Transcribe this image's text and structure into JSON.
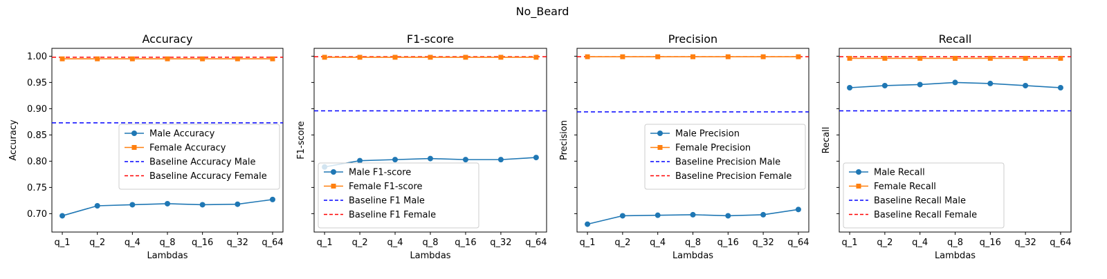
{
  "figure_title": "No_Beard",
  "colors": {
    "male": "#1f77b4",
    "female": "#ff7f0e",
    "baseline_male": "#0000ff",
    "baseline_female": "#ff0000"
  },
  "chart_data": [
    {
      "type": "line",
      "title": "Accuracy",
      "xlabel": "Lambdas",
      "ylabel": "Accuracy",
      "categories": [
        "q_1",
        "q_2",
        "q_4",
        "q_8",
        "q_16",
        "q_32",
        "q_64"
      ],
      "ylim": [
        0.665,
        1.015
      ],
      "yticks": [
        "0.70",
        "0.75",
        "0.80",
        "0.85",
        "0.90",
        "0.95",
        "1.00"
      ],
      "show_ytick_labels": true,
      "series": [
        {
          "name": "Male Accuracy",
          "marker": "circle",
          "values": [
            0.696,
            0.715,
            0.717,
            0.719,
            0.717,
            0.718,
            0.727
          ]
        },
        {
          "name": "Female Accuracy",
          "marker": "square",
          "values": [
            0.995,
            0.995,
            0.995,
            0.995,
            0.995,
            0.995,
            0.995
          ]
        }
      ],
      "baselines": [
        {
          "name": "Baseline Accuracy Male",
          "value": 0.873
        },
        {
          "name": "Baseline Accuracy Female",
          "value": 0.998
        }
      ],
      "legend_loc": "center-right"
    },
    {
      "type": "line",
      "title": "F1-score",
      "xlabel": "Lambdas",
      "ylabel": "F1-score",
      "categories": [
        "q_1",
        "q_2",
        "q_4",
        "q_8",
        "q_16",
        "q_32",
        "q_64"
      ],
      "ylim": [
        0.665,
        1.015
      ],
      "yticks": [
        "0.70",
        "0.75",
        "0.80",
        "0.85",
        "0.90",
        "0.95",
        "1.00"
      ],
      "show_ytick_labels": false,
      "series": [
        {
          "name": "Male F1-score",
          "marker": "circle",
          "values": [
            0.789,
            0.801,
            0.803,
            0.805,
            0.803,
            0.803,
            0.807
          ]
        },
        {
          "name": "Female F1-score",
          "marker": "square",
          "values": [
            0.998,
            0.998,
            0.998,
            0.998,
            0.998,
            0.998,
            0.998
          ]
        }
      ],
      "baselines": [
        {
          "name": "Baseline F1 Male",
          "value": 0.896
        },
        {
          "name": "Baseline F1 Female",
          "value": 0.999
        }
      ],
      "legend_loc": "lower-left"
    },
    {
      "type": "line",
      "title": "Precision",
      "xlabel": "Lambdas",
      "ylabel": "Precision",
      "categories": [
        "q_1",
        "q_2",
        "q_4",
        "q_8",
        "q_16",
        "q_32",
        "q_64"
      ],
      "ylim": [
        0.665,
        1.015
      ],
      "yticks": [
        "0.70",
        "0.75",
        "0.80",
        "0.85",
        "0.90",
        "0.95",
        "1.00"
      ],
      "show_ytick_labels": false,
      "series": [
        {
          "name": "Male Precision",
          "marker": "circle",
          "values": [
            0.68,
            0.696,
            0.697,
            0.698,
            0.696,
            0.698,
            0.708
          ]
        },
        {
          "name": "Female Precision",
          "marker": "square",
          "values": [
            0.999,
            0.999,
            0.999,
            0.999,
            0.999,
            0.999,
            0.999
          ]
        }
      ],
      "baselines": [
        {
          "name": "Baseline Precision Male",
          "value": 0.894
        },
        {
          "name": "Baseline Precision Female",
          "value": 0.999
        }
      ],
      "legend_loc": "center-right"
    },
    {
      "type": "line",
      "title": "Recall",
      "xlabel": "Lambdas",
      "ylabel": "Recall",
      "categories": [
        "q_1",
        "q_2",
        "q_4",
        "q_8",
        "q_16",
        "q_32",
        "q_64"
      ],
      "ylim": [
        0.665,
        1.015
      ],
      "yticks": [
        "0.70",
        "0.75",
        "0.80",
        "0.85",
        "0.90",
        "0.95",
        "1.00"
      ],
      "show_ytick_labels": false,
      "series": [
        {
          "name": "Male Recall",
          "marker": "circle",
          "values": [
            0.94,
            0.944,
            0.946,
            0.95,
            0.948,
            0.944,
            0.94
          ]
        },
        {
          "name": "Female Recall",
          "marker": "square",
          "values": [
            0.996,
            0.996,
            0.996,
            0.996,
            0.996,
            0.996,
            0.996
          ]
        }
      ],
      "baselines": [
        {
          "name": "Baseline Recall Male",
          "value": 0.896
        },
        {
          "name": "Baseline Recall Female",
          "value": 0.999
        }
      ],
      "legend_loc": "lower-left"
    }
  ]
}
